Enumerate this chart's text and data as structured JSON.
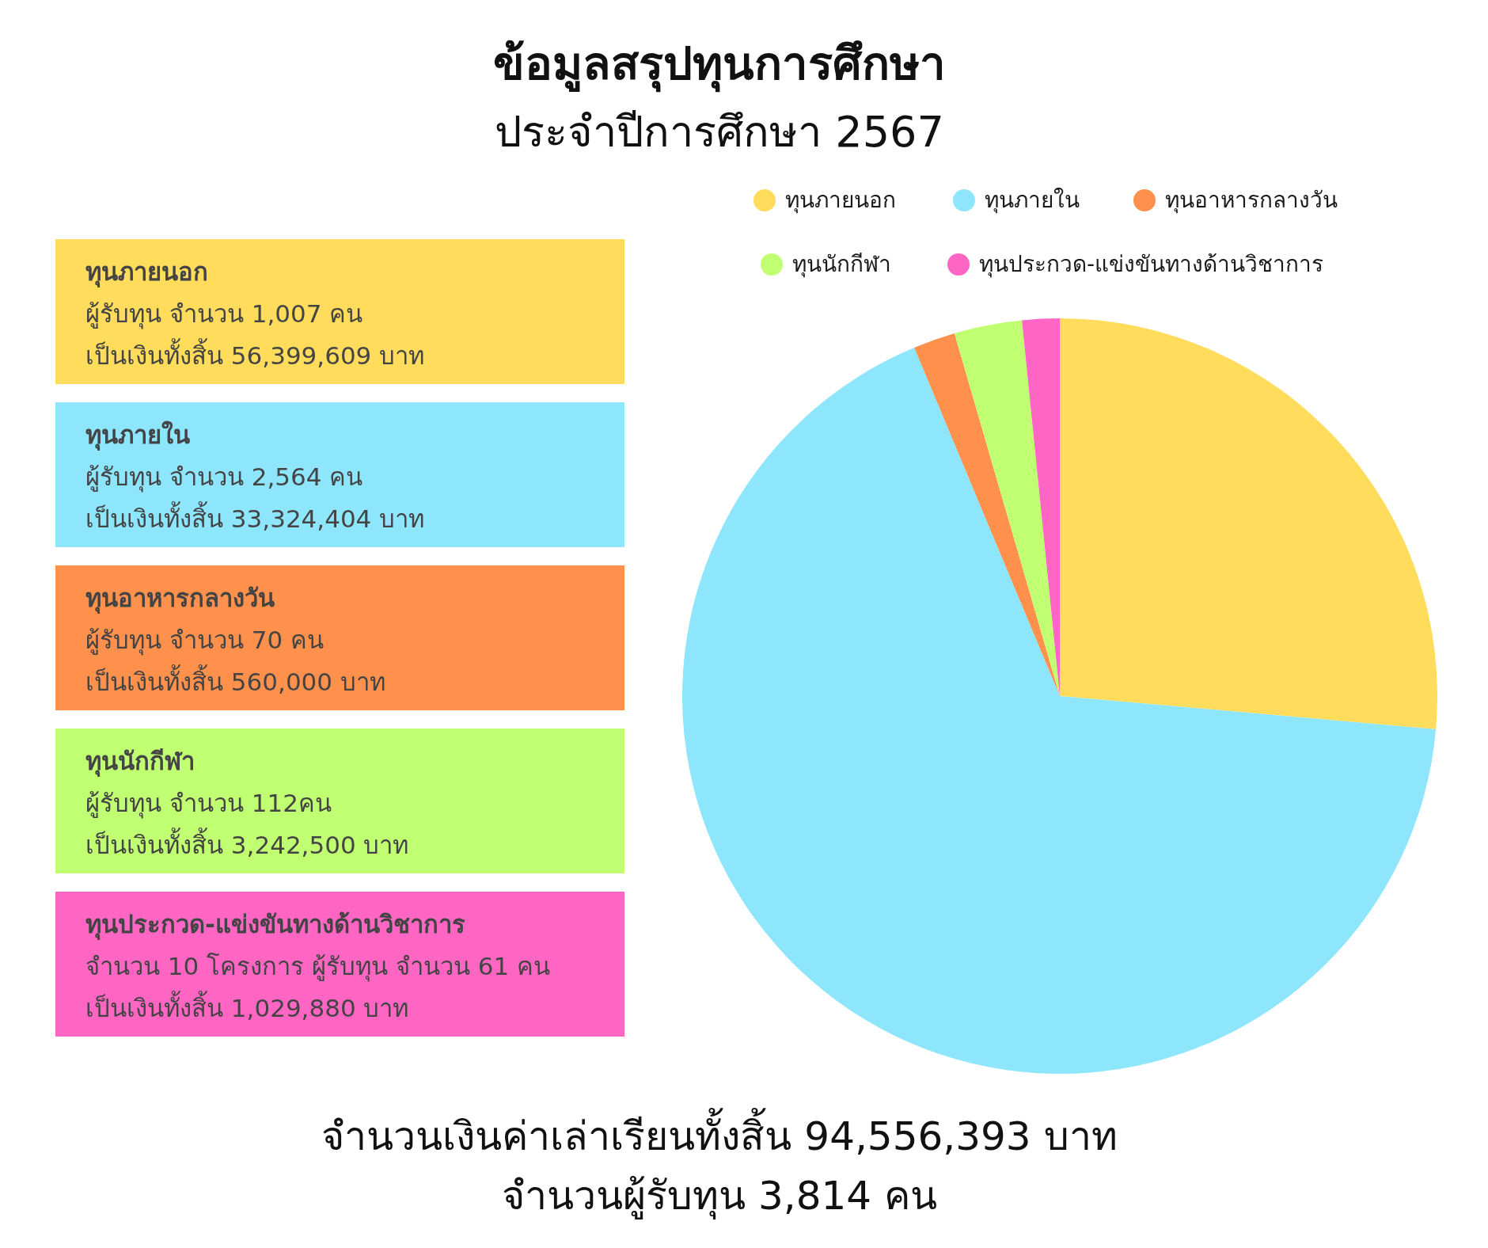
{
  "chart_data": {
    "type": "pie",
    "title": "ข้อมูลสรุปทุนการศึกษา",
    "subtitle": "ประจำปีการศึกษา 2567",
    "categories": [
      "ทุนภายนอก",
      "ทุนภายใน",
      "ทุนอาหารกลางวัน",
      "ทุนนักกีฬา",
      "ทุนประกวด-แข่งขันทางด้านวิชาการ"
    ],
    "values": [
      26.4,
      67.3,
      1.8,
      2.9,
      1.6
    ],
    "colors": [
      "#ffdc5c",
      "#8ee6fd",
      "#ff914d",
      "#c1ff72",
      "#ff66c4"
    ],
    "legend": "top",
    "annotations": [
      "ทุนภายนอก",
      "ผู้รับทุน จำนวน 1,007 คน",
      "เป็นเงินทั้งสิ้น 56,399,609 บาท",
      "ทุนภายใน",
      "ผู้รับทุน จำนวน 2,564 คน",
      "เป็นเงินทั้งสิ้น 33,324,404 บาท",
      "ทุนอาหารกลางวัน",
      "ผู้รับทุน จำนวน 70 คน",
      "เป็นเงินทั้งสิ้น 560,000 บาท",
      "ทุนนักกีฬา",
      "ผู้รับทุน จำนวน 112คน",
      "เป็นเงินทั้งสิ้น 3,242,500 บาท",
      "ทุนประกวด-แข่งขันทางด้านวิชาการ",
      "จำนวน 10 โครงการ ผู้รับทุน จำนวน 61 คน",
      "เป็นเงินทั้งสิ้น 1,029,880 บาท",
      "จำนวนเงินค่าเล่าเรียนทั้งสิ้น 94,556,393 บาท",
      "จำนวนผู้รับทุน 3,814 คน"
    ]
  }
}
